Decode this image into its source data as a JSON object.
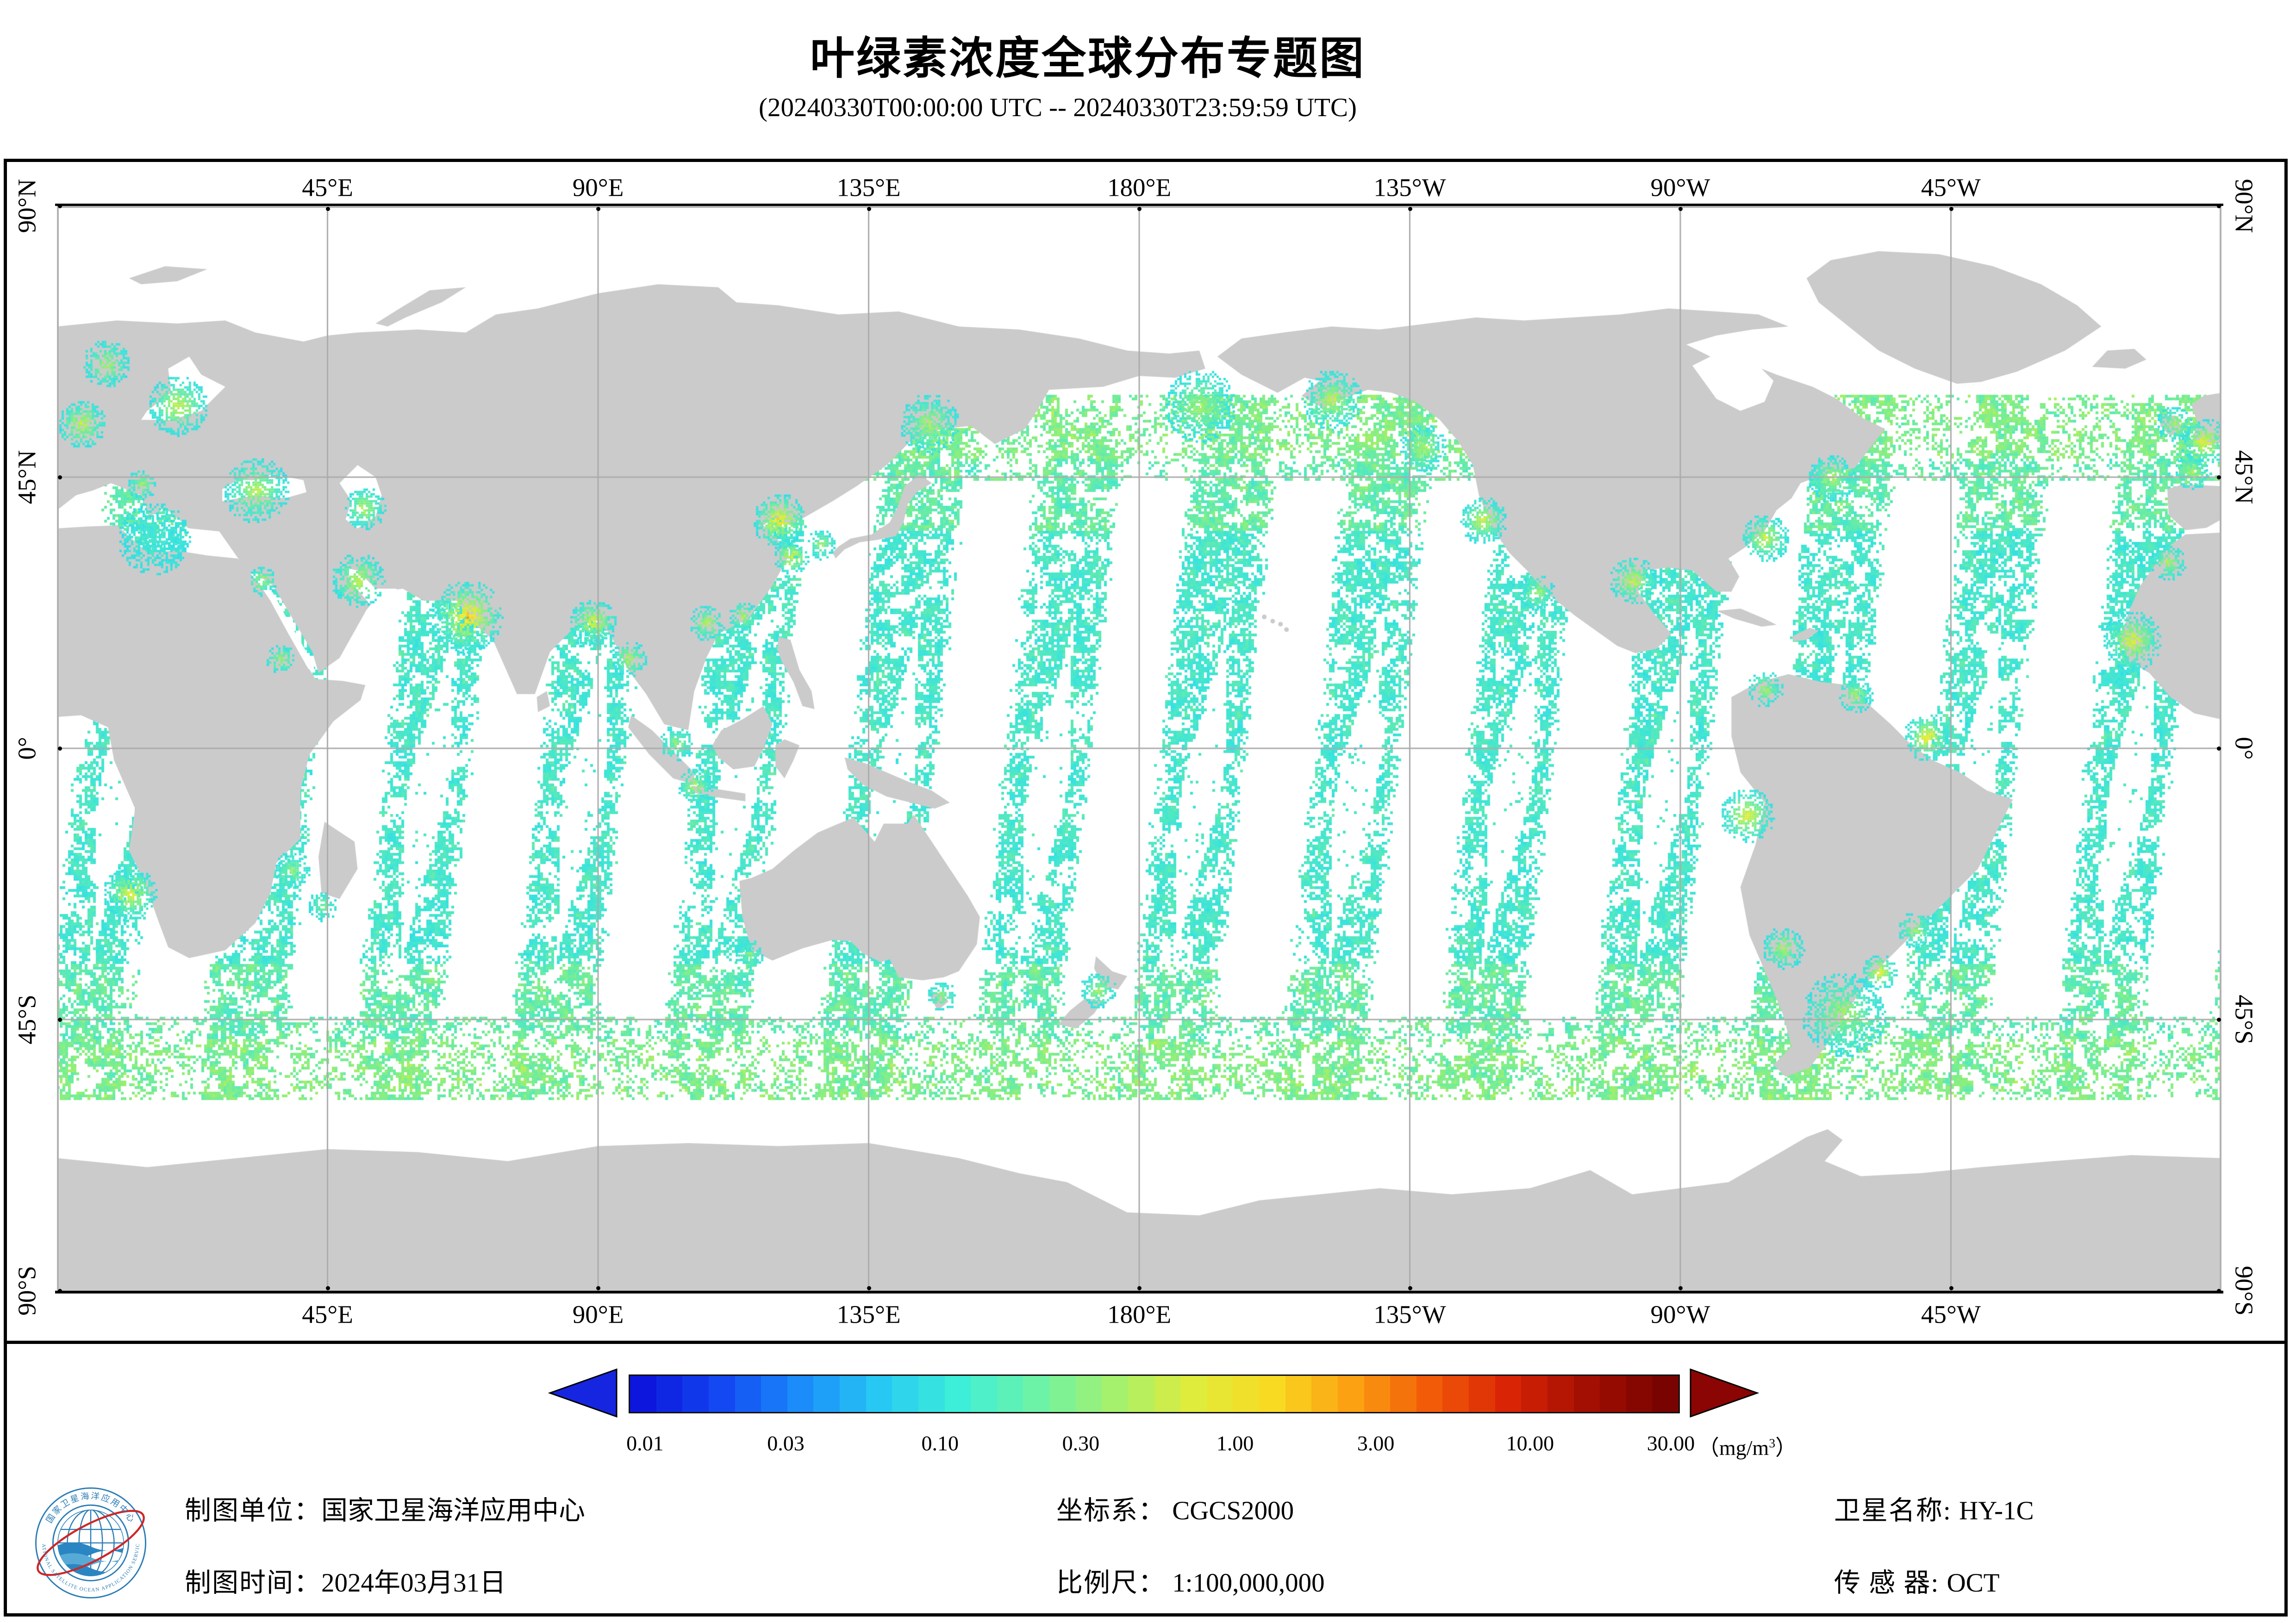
{
  "title": "叶绿素浓度全球分布专题图",
  "subtitle": "(20240330T00:00:00 UTC -- 20240330T23:59:59 UTC)",
  "map": {
    "lon_ticks": [
      {
        "label": "45°E",
        "deg_e": 45
      },
      {
        "label": "90°E",
        "deg_e": 90
      },
      {
        "label": "135°E",
        "deg_e": 135
      },
      {
        "label": "180°E",
        "deg_e": 180
      },
      {
        "label": "135°W",
        "deg_e": 225
      },
      {
        "label": "90°W",
        "deg_e": 270
      },
      {
        "label": "45°W",
        "deg_e": 315
      }
    ],
    "lat_ticks": [
      {
        "label": "90°N",
        "deg_n": 90
      },
      {
        "label": "45°N",
        "deg_n": 45
      },
      {
        "label": "0°",
        "deg_n": 0
      },
      {
        "label": "45°S",
        "deg_n": -45
      },
      {
        "label": "90°S",
        "deg_n": -90
      }
    ]
  },
  "colorbar": {
    "tick_labels": [
      "0.01",
      "0.03",
      "0.10",
      "0.30",
      "1.00",
      "3.00",
      "10.00",
      "30.00"
    ],
    "tick_values": [
      0.01,
      0.03,
      0.1,
      0.3,
      1.0,
      3.0,
      10.0,
      30.0
    ],
    "unit": "（mg/m³）",
    "scale_min": 0.0088,
    "scale_max": 31.5,
    "steps": 40,
    "gradient": [
      "#0d16dc",
      "#1348f2",
      "#1b8cfa",
      "#27c8f4",
      "#3deed8",
      "#6cf3a8",
      "#a5f06d",
      "#dfec3c",
      "#f9da22",
      "#fba112",
      "#f25c08",
      "#d92405",
      "#a30f03",
      "#780301"
    ],
    "left_arrow_color": "#1626e0",
    "right_arrow_color": "#8a0503"
  },
  "footer": {
    "org_label": "制图单位：",
    "org_value": "国家卫星海洋应用中心",
    "date_label": "制图时间：",
    "date_value": "2024年03月31日",
    "crs_label": "坐标系：",
    "crs_value": "CGCS2000",
    "scale_label": "比例尺：",
    "scale_value": "1:100,000,000",
    "satellite_label": "卫星名称: ",
    "satellite_value": "HY-1C",
    "sensor_label": "传 感 器: ",
    "sensor_value": "OCT"
  },
  "logo": {
    "text_top": "国家卫星海洋应用中心",
    "text_bottom": "NATIONAL SATELLITE OCEAN APPLICATION SERVICE"
  },
  "colors": {
    "land": "#cbcbcb",
    "ocean": "#ffffff",
    "grid": "#ababab",
    "frame": "#000000",
    "swath_cyan": "#33dcec",
    "logo_blue": "#2a7cb5",
    "logo_red": "#cd2727"
  },
  "chart_data": {
    "type": "heatmap",
    "title": "叶绿素浓度全球分布专题图",
    "time_range": "20240330T00:00:00 UTC -- 20240330T23:59:59 UTC",
    "variable": "chlorophyll concentration",
    "unit": "mg/m³",
    "scale_type": "log",
    "colorbar_ticks": [
      0.01,
      0.03,
      0.1,
      0.3,
      1.0,
      3.0,
      10.0,
      30.0
    ],
    "lon_range_deg_e": [
      0,
      360
    ],
    "lat_range_deg_n": [
      -90,
      90
    ],
    "grid_interval_deg": 45,
    "legend_position": "bottom",
    "notes": "Polar-orbit satellite swath coverage, ~14 descending passes, cyan (~0.05-0.2 mg/m³) open ocean, yellow-red (1-30 mg/m³) near coasts"
  }
}
